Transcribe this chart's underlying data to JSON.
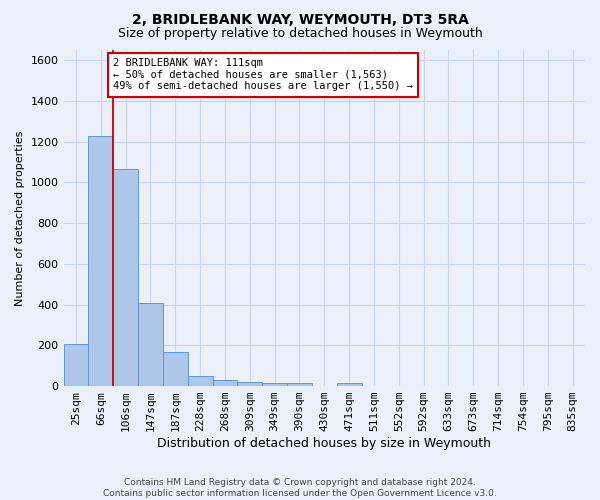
{
  "title": "2, BRIDLEBANK WAY, WEYMOUTH, DT3 5RA",
  "subtitle": "Size of property relative to detached houses in Weymouth",
  "xlabel": "Distribution of detached houses by size in Weymouth",
  "ylabel": "Number of detached properties",
  "footer_line1": "Contains HM Land Registry data © Crown copyright and database right 2024.",
  "footer_line2": "Contains public sector information licensed under the Open Government Licence v3.0.",
  "categories": [
    "25sqm",
    "66sqm",
    "106sqm",
    "147sqm",
    "187sqm",
    "228sqm",
    "268sqm",
    "309sqm",
    "349sqm",
    "390sqm",
    "430sqm",
    "471sqm",
    "511sqm",
    "552sqm",
    "592sqm",
    "633sqm",
    "673sqm",
    "714sqm",
    "754sqm",
    "795sqm",
    "835sqm"
  ],
  "values": [
    205,
    1230,
    1065,
    410,
    165,
    50,
    30,
    22,
    15,
    15,
    0,
    15,
    0,
    0,
    0,
    0,
    0,
    0,
    0,
    0,
    0
  ],
  "bar_color": "#aec6e8",
  "bar_edge_color": "#5b9bd5",
  "grid_color": "#c8d4e8",
  "bg_color": "#eaeff8",
  "property_line_x": 1.5,
  "property_line_color": "#cc0000",
  "annotation_text": "2 BRIDLEBANK WAY: 111sqm\n← 50% of detached houses are smaller (1,563)\n49% of semi-detached houses are larger (1,550) →",
  "annotation_box_color": "#ffffff",
  "annotation_box_edge_color": "#cc0000",
  "ylim": [
    0,
    1650
  ],
  "yticks": [
    0,
    200,
    400,
    600,
    800,
    1000,
    1200,
    1400,
    1600
  ],
  "title_fontsize": 10,
  "subtitle_fontsize": 9,
  "ylabel_fontsize": 8,
  "xlabel_fontsize": 9,
  "tick_fontsize": 8,
  "footer_fontsize": 6.5
}
